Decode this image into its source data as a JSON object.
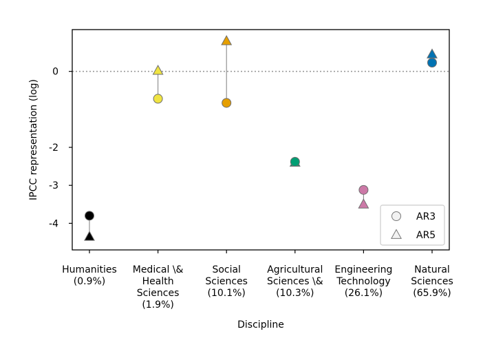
{
  "chart_data": {
    "type": "scatter",
    "xlabel": "Discipline",
    "ylabel": "IPCC representation (log)",
    "yticks": [
      {
        "value": 0,
        "label": "0"
      },
      {
        "value": -2,
        "label": "-2"
      },
      {
        "value": -3,
        "label": "-3"
      },
      {
        "value": -4,
        "label": "-4"
      }
    ],
    "ylim": [
      -4.7,
      1.1
    ],
    "categories": [
      {
        "lines": [
          "Humanities",
          "(0.9%)"
        ],
        "color": "#000000"
      },
      {
        "lines": [
          "Medical \\&",
          "Health",
          "Sciences",
          "(1.9%)"
        ],
        "color": "#f0e442"
      },
      {
        "lines": [
          "Social",
          "Sciences",
          "(10.1%)"
        ],
        "color": "#e69f00"
      },
      {
        "lines": [
          "Agricultural",
          "Sciences \\&",
          "(10.3%)"
        ],
        "color": "#009e73"
      },
      {
        "lines": [
          "Engineering",
          "Technology",
          "(26.1%)"
        ],
        "color": "#cc79a7"
      },
      {
        "lines": [
          "Natural",
          "Sciences",
          "(65.9%)"
        ],
        "color": "#0072b2"
      }
    ],
    "series": [
      {
        "name": "AR3",
        "marker": "circle",
        "values": [
          -3.8,
          -0.72,
          -0.83,
          -2.38,
          -3.12,
          0.23
        ]
      },
      {
        "name": "AR5",
        "marker": "triangle",
        "values": [
          -4.35,
          0.02,
          0.8,
          -2.4,
          -3.5,
          0.45
        ]
      }
    ],
    "reference_line": {
      "value": 0,
      "style": "dotted",
      "color": "#999999"
    },
    "legend": {
      "placement": "bottom-right"
    }
  }
}
